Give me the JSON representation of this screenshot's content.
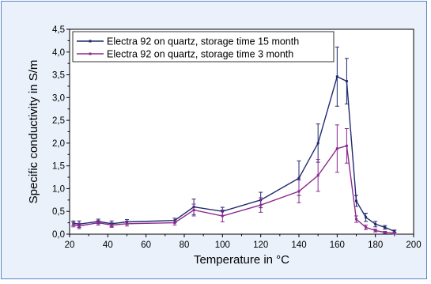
{
  "chart_data": {
    "type": "line",
    "xlabel": "Temperature in °C",
    "ylabel": "Specific conductivity in S/m",
    "xlim": [
      20,
      200
    ],
    "ylim": [
      0,
      4.5
    ],
    "xticks": [
      20,
      40,
      60,
      80,
      100,
      120,
      140,
      160,
      180,
      200
    ],
    "yticks": [
      "0,0",
      "0,5",
      "1,0",
      "1,5",
      "2,0",
      "2,5",
      "3,0",
      "3,5",
      "4,0",
      "4,5"
    ],
    "grid": false,
    "legend_position": "top-right",
    "series": [
      {
        "name": "Electra 92 on quartz, storage time 15 month",
        "color": "#1f2a6e",
        "points": [
          {
            "x": 22,
            "y": 0.24,
            "err": 0.05
          },
          {
            "x": 25,
            "y": 0.22,
            "err": 0.07
          },
          {
            "x": 35,
            "y": 0.28,
            "err": 0.05
          },
          {
            "x": 42,
            "y": 0.23,
            "err": 0.06
          },
          {
            "x": 50,
            "y": 0.27,
            "err": 0.05
          },
          {
            "x": 75,
            "y": 0.3,
            "err": 0.05
          },
          {
            "x": 85,
            "y": 0.6,
            "err": 0.17
          },
          {
            "x": 100,
            "y": 0.5,
            "err": 0.09
          },
          {
            "x": 120,
            "y": 0.75,
            "err": 0.17
          },
          {
            "x": 140,
            "y": 1.23,
            "err": 0.38
          },
          {
            "x": 150,
            "y": 2.0,
            "err": 0.42
          },
          {
            "x": 160,
            "y": 3.46,
            "err": 0.65
          },
          {
            "x": 165,
            "y": 3.36,
            "err": 0.5
          },
          {
            "x": 170,
            "y": 0.73,
            "err": 0.12
          },
          {
            "x": 175,
            "y": 0.37,
            "err": 0.09
          },
          {
            "x": 180,
            "y": 0.22,
            "err": 0.06
          },
          {
            "x": 185,
            "y": 0.15,
            "err": 0.04
          },
          {
            "x": 190,
            "y": 0.06,
            "err": 0.03
          }
        ]
      },
      {
        "name": "Electra 92 on quartz, storage time  3 month",
        "color": "#8b2a8f",
        "points": [
          {
            "x": 22,
            "y": 0.21,
            "err": 0.05
          },
          {
            "x": 25,
            "y": 0.18,
            "err": 0.06
          },
          {
            "x": 35,
            "y": 0.25,
            "err": 0.05
          },
          {
            "x": 42,
            "y": 0.2,
            "err": 0.05
          },
          {
            "x": 50,
            "y": 0.23,
            "err": 0.05
          },
          {
            "x": 75,
            "y": 0.25,
            "err": 0.05
          },
          {
            "x": 85,
            "y": 0.53,
            "err": 0.13
          },
          {
            "x": 100,
            "y": 0.4,
            "err": 0.13
          },
          {
            "x": 120,
            "y": 0.64,
            "err": 0.16
          },
          {
            "x": 140,
            "y": 0.94,
            "err": 0.25
          },
          {
            "x": 150,
            "y": 1.29,
            "err": 0.35
          },
          {
            "x": 160,
            "y": 1.88,
            "err": 0.52
          },
          {
            "x": 165,
            "y": 1.94,
            "err": 0.38
          },
          {
            "x": 170,
            "y": 0.33,
            "err": 0.07
          },
          {
            "x": 175,
            "y": 0.15,
            "err": 0.05
          },
          {
            "x": 180,
            "y": 0.08,
            "err": 0.03
          },
          {
            "x": 185,
            "y": 0.04,
            "err": 0.02
          },
          {
            "x": 190,
            "y": 0.02,
            "err": 0.02
          }
        ]
      }
    ]
  }
}
